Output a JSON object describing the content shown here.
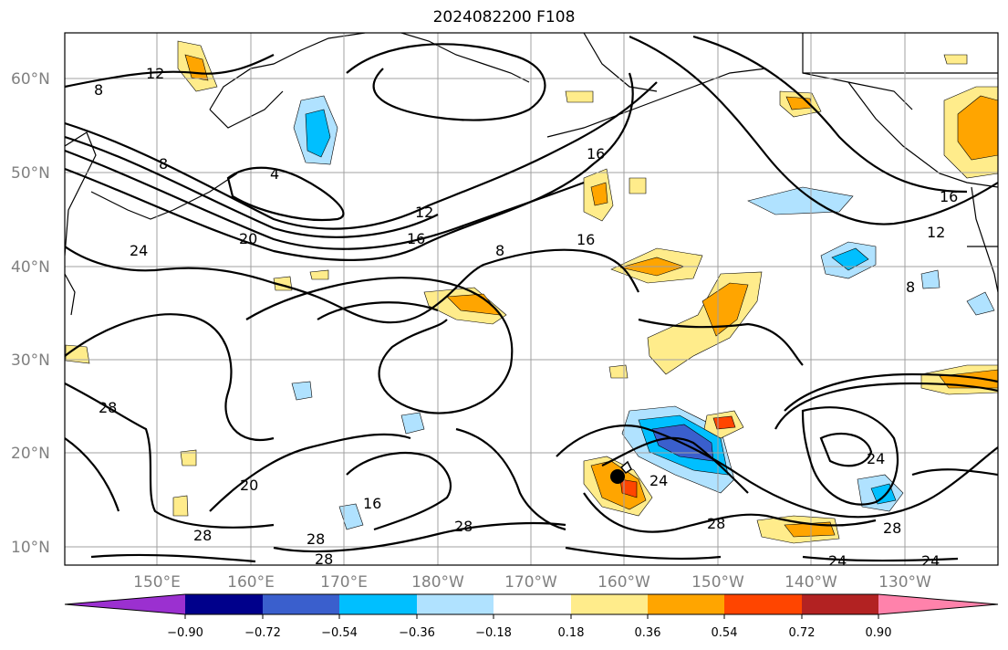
{
  "title": "2024082200 F108",
  "map": {
    "latitude_labels": [
      "60°N",
      "50°N",
      "40°N",
      "30°N",
      "20°N",
      "10°N"
    ],
    "longitude_labels": [
      "150°E",
      "160°E",
      "170°E",
      "180°W",
      "170°W",
      "160°W",
      "150°W",
      "140°W",
      "130°W"
    ],
    "contour_labels": [
      "12",
      "8",
      "8",
      "4",
      "12",
      "16",
      "20",
      "24",
      "8",
      "16",
      "16",
      "12",
      "16",
      "8",
      "28",
      "20",
      "16",
      "28",
      "28",
      "28",
      "24",
      "28",
      "28",
      "24",
      "24",
      "28",
      "24"
    ],
    "contour_color": "#000000",
    "grid_color": "#a0a0a0",
    "storm_marker": "filled black circle near 17°N 161°W"
  },
  "colorbar": {
    "tick_labels": [
      "−0.90",
      "−0.72",
      "−0.54",
      "−0.36",
      "−0.18",
      "0.18",
      "0.36",
      "0.54",
      "0.72",
      "0.90"
    ],
    "bins": [
      {
        "color": "#9b30d0"
      },
      {
        "color": "#00008b"
      },
      {
        "color": "#3a5fcd"
      },
      {
        "color": "#00bfff"
      },
      {
        "color": "#b0e2ff"
      },
      {
        "color": "#ffffff"
      },
      {
        "color": "#ffec8b"
      },
      {
        "color": "#ffa500"
      },
      {
        "color": "#ff4500"
      },
      {
        "color": "#b22222"
      },
      {
        "color": "#ff82ab"
      }
    ]
  }
}
